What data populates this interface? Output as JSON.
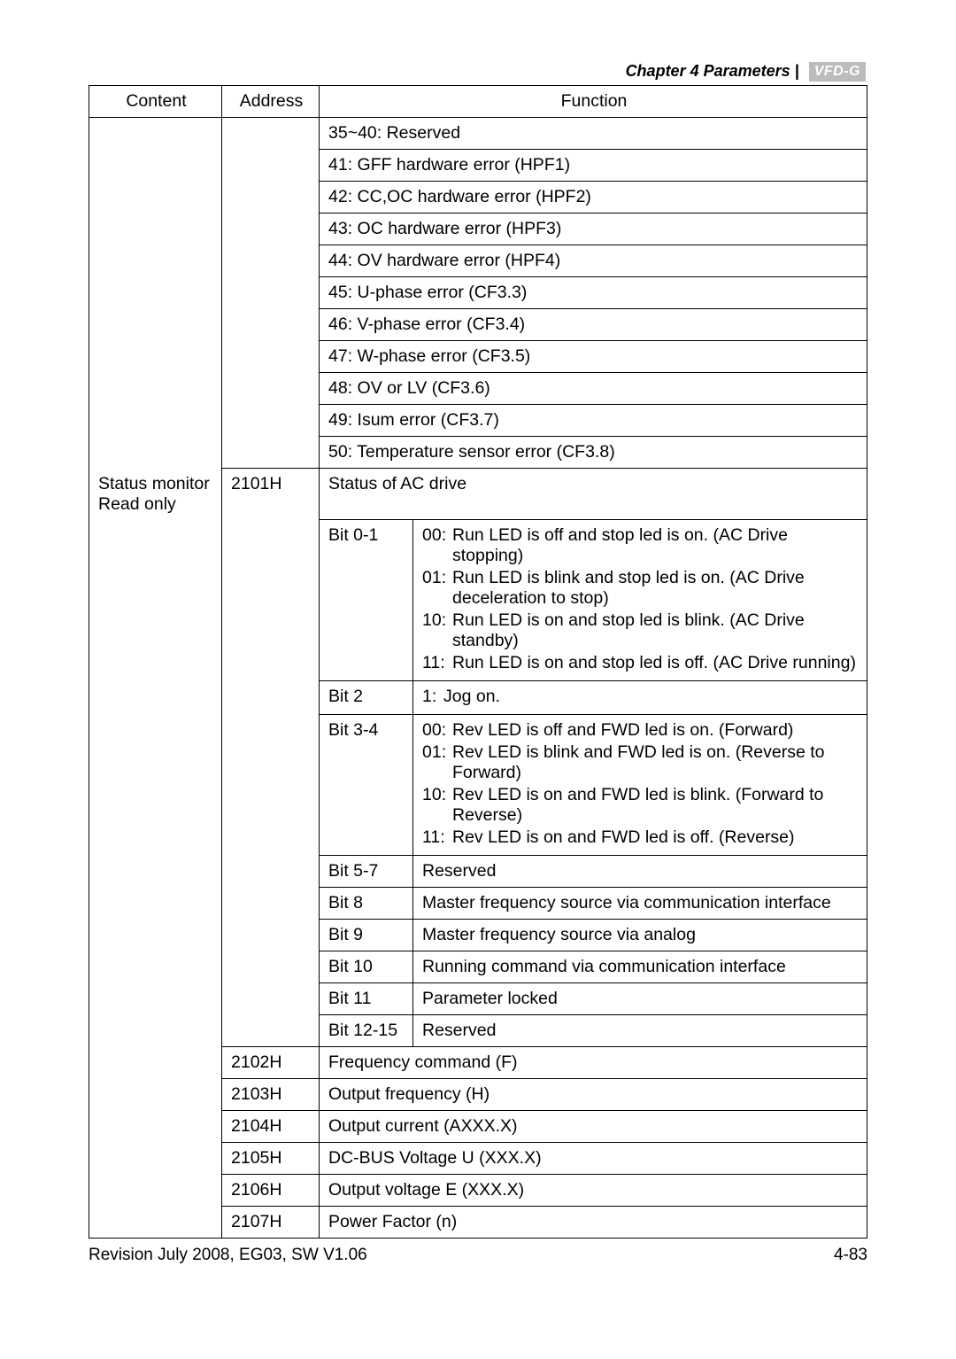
{
  "chapter_label": "Chapter 4  Parameters |",
  "badge_text": "VFD-G",
  "columns": {
    "c1": "Content",
    "c2": "Address",
    "c3": "Function"
  },
  "content_cell": [
    "Status monitor",
    "Read only"
  ],
  "reserved_and_errors": [
    "35~40: Reserved",
    "41: GFF hardware error (HPF1)",
    "42: CC,OC hardware error (HPF2)",
    "43: OC hardware error (HPF3)",
    "44: OV hardware error (HPF4)",
    "45: U-phase error (CF3.3)",
    "46: V-phase error (CF3.4)",
    "47: W-phase error (CF3.5)",
    "48: OV or LV (CF3.6)",
    "49: Isum error (CF3.7)",
    "50: Temperature sensor error (CF3.8)"
  ],
  "addr_2101": "2101H",
  "status_of_ac_drive": "Status of AC drive",
  "bit_rows": [
    {
      "label": "Bit 0-1",
      "items": [
        {
          "lead": "00:",
          "text": "Run LED is off and stop led is on. (AC Drive stopping)",
          "indent": true
        },
        {
          "lead": "01:",
          "text": "Run LED is blink and stop led is on. (AC Drive deceleration to stop)",
          "indent": true
        },
        {
          "lead": "10:",
          "text": "Run LED is on and stop led is blink. (AC Drive standby)",
          "indent": true
        },
        {
          "lead": "11:",
          "text": "Run LED is on and stop led is off. (AC Drive running)",
          "indent": true
        }
      ]
    },
    {
      "label": "Bit 2",
      "items": [
        {
          "lead": "1:",
          "text": "Jog on."
        }
      ]
    },
    {
      "label": "Bit 3-4",
      "items": [
        {
          "lead": "00:",
          "text": "Rev LED is off and FWD led is on. (Forward)"
        },
        {
          "lead": "01:",
          "text": "Rev LED is blink and FWD led is on. (Reverse to Forward)",
          "indent": true
        },
        {
          "lead": "10:",
          "text": "Rev LED is on and FWD led is blink. (Forward to Reverse)",
          "indent": true
        },
        {
          "lead": "11:",
          "text": "Rev LED is on and FWD led is off. (Reverse)"
        }
      ]
    },
    {
      "label": "Bit 5-7",
      "plain": "Reserved"
    },
    {
      "label": "Bit 8",
      "plain": "Master frequency source via communication interface"
    },
    {
      "label": "Bit 9",
      "plain": "Master frequency source via analog"
    },
    {
      "label": "Bit 10",
      "plain": "Running command via communication interface"
    },
    {
      "label": "Bit 11",
      "plain": "Parameter locked"
    },
    {
      "label": "Bit 12-15",
      "plain": "Reserved"
    }
  ],
  "simple_rows": [
    {
      "addr": "2102H",
      "func": "Frequency command (F)"
    },
    {
      "addr": "2103H",
      "func": "Output frequency (H)"
    },
    {
      "addr": "2104H",
      "func": "Output current (AXXX.X)"
    },
    {
      "addr": "2105H",
      "func": "DC-BUS Voltage U (XXX.X)"
    },
    {
      "addr": "2106H",
      "func": "Output voltage E (XXX.X)"
    },
    {
      "addr": "2107H",
      "func": "Power Factor (n)"
    }
  ],
  "footer_left": "Revision July 2008, EG03, SW V1.06",
  "footer_right": "4-83"
}
